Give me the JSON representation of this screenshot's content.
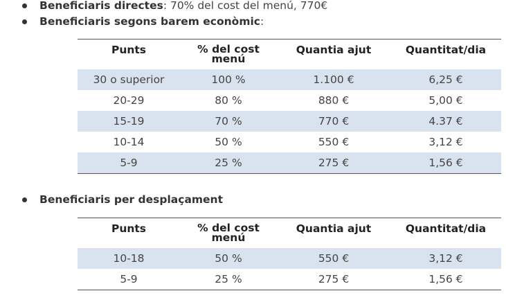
{
  "bullets": [
    {
      "bold": "Beneficiaris directes",
      "rest": ": 70% del cost del menú, 770€"
    },
    {
      "bold": "Beneficiaris segons barem econòmic",
      "rest": ":"
    },
    {
      "bold": "Beneficiaris per desplaçament",
      "rest": ""
    }
  ],
  "table1": {
    "headers": [
      "Punts",
      "% del cost menú",
      "Quantia ajut",
      "Quantitat/dia"
    ],
    "rows": [
      [
        "30 o superior",
        "100 %",
        "1.100 €",
        "6,25 €"
      ],
      [
        "20-29",
        "80 %",
        "880 €",
        "5,00 €"
      ],
      [
        "15-19",
        "70 %",
        "770 €",
        "4.37 €"
      ],
      [
        "10-14",
        "50 %",
        "550 €",
        "3,12 €"
      ],
      [
        "5-9",
        "25 %",
        "275 €",
        "1,56 €"
      ]
    ]
  },
  "table2": {
    "headers": [
      "Punts",
      "% del cost menú",
      "Quantia ajut",
      "Quantitat/dia"
    ],
    "rows": [
      [
        "10-18",
        "50 %",
        "550 €",
        "3,12 €"
      ],
      [
        "5-9",
        "25 %",
        "275 €",
        "1,56 €"
      ]
    ]
  }
}
